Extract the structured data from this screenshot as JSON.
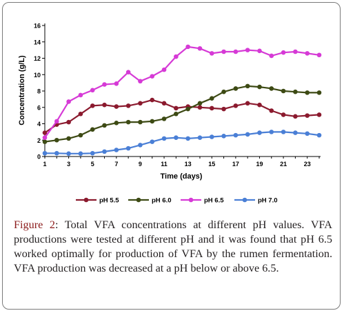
{
  "chart_data": {
    "type": "line",
    "title": "",
    "xlabel": "Time (days)",
    "ylabel": "Concentration (g/L)",
    "xlim": [
      1,
      24
    ],
    "ylim": [
      0,
      16
    ],
    "x_ticks": [
      1,
      3,
      5,
      7,
      9,
      11,
      13,
      15,
      17,
      19,
      21,
      23
    ],
    "y_ticks": [
      0,
      2,
      4,
      6,
      8,
      10,
      12,
      14,
      16
    ],
    "grid": false,
    "legend_position": "bottom",
    "x": [
      1,
      2,
      3,
      4,
      5,
      6,
      7,
      8,
      9,
      10,
      11,
      12,
      13,
      14,
      15,
      16,
      17,
      18,
      19,
      20,
      21,
      22,
      23,
      24
    ],
    "series": [
      {
        "name": "pH 5.5",
        "color": "#8b1a2e",
        "values": [
          2.9,
          3.9,
          4.2,
          5.2,
          6.2,
          6.3,
          6.1,
          6.2,
          6.5,
          6.9,
          6.5,
          5.9,
          6.1,
          6.0,
          5.9,
          5.8,
          6.2,
          6.5,
          6.3,
          5.6,
          5.1,
          4.9,
          5.0,
          5.1
        ]
      },
      {
        "name": "pH 6.0",
        "color": "#3d4a14",
        "values": [
          1.8,
          2.0,
          2.2,
          2.6,
          3.3,
          3.8,
          4.1,
          4.2,
          4.2,
          4.3,
          4.6,
          5.2,
          5.8,
          6.5,
          7.1,
          7.9,
          8.3,
          8.6,
          8.5,
          8.3,
          8.0,
          7.9,
          7.8,
          7.8
        ]
      },
      {
        "name": "pH 6.5",
        "color": "#d63ad6",
        "values": [
          2.3,
          4.3,
          6.7,
          7.5,
          8.1,
          8.8,
          8.9,
          10.3,
          9.2,
          9.8,
          10.6,
          12.2,
          13.4,
          13.2,
          12.6,
          12.8,
          12.8,
          13.0,
          12.9,
          12.3,
          12.7,
          12.8,
          12.6,
          12.4
        ]
      },
      {
        "name": "pH 7.0",
        "color": "#4a7fd6",
        "values": [
          0.4,
          0.4,
          0.35,
          0.35,
          0.4,
          0.6,
          0.8,
          1.0,
          1.4,
          1.8,
          2.2,
          2.3,
          2.2,
          2.3,
          2.4,
          2.5,
          2.6,
          2.7,
          2.9,
          3.0,
          3.0,
          2.9,
          2.8,
          2.6
        ]
      }
    ]
  },
  "caption": {
    "label": "Figure 2",
    "text": ": Total VFA concentrations at different pH values. VFA productions were tested at different pH and it was found that pH 6.5 worked optimally for production of VFA by the rumen fermentation. VFA production was decreased at a pH below or above 6.5."
  }
}
